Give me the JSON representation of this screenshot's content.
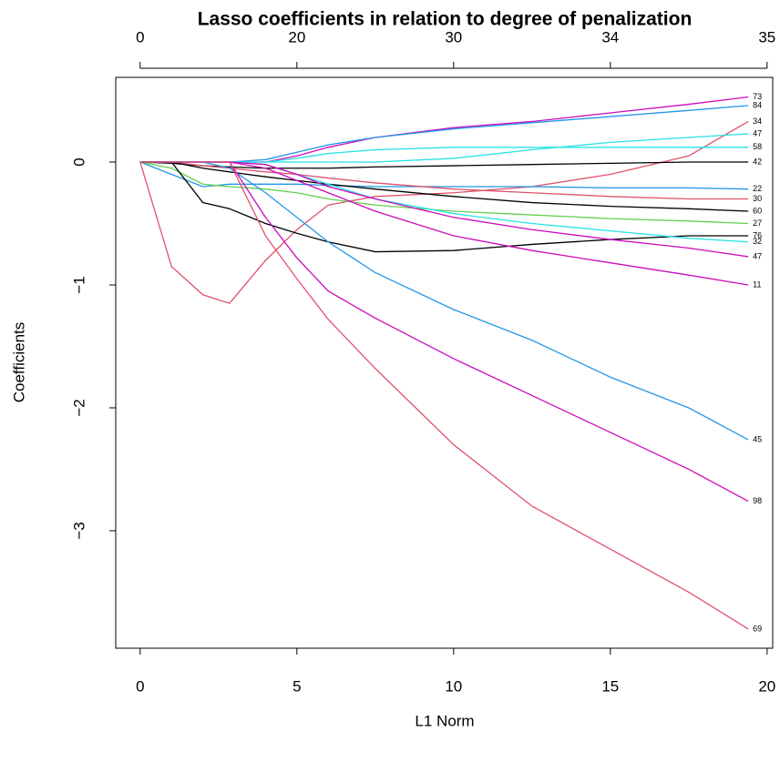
{
  "chart_data": {
    "type": "line",
    "title": "Lasso coefficients in relation to degree of penalization",
    "x_label": "L1 Norm",
    "y_label": "Coefficients",
    "x": [
      0,
      1,
      2,
      2.85,
      4,
      5,
      6,
      7.5,
      10,
      12.5,
      15,
      17.5,
      19.4
    ],
    "xlim": [
      -0.78,
      20.18
    ],
    "ylim": [
      -3.956,
      0.689
    ],
    "xticks": [
      0,
      5,
      10,
      15,
      20
    ],
    "top_ticks": [
      {
        "value": 0,
        "label": "0"
      },
      {
        "value": 5,
        "label": "20"
      },
      {
        "value": 10,
        "label": "30"
      },
      {
        "value": 15,
        "label": "34"
      },
      {
        "value": 20,
        "label": "35"
      }
    ],
    "yticks": [
      {
        "value": -3,
        "label": "−3"
      },
      {
        "value": -2,
        "label": "−2"
      },
      {
        "value": -1,
        "label": "−1"
      },
      0
    ],
    "series": [
      {
        "name": "73",
        "color": "#CD0BBC",
        "values": [
          0,
          0,
          0,
          0,
          0,
          0.05,
          0.12,
          0.2,
          0.28,
          0.33,
          0.4,
          0.47,
          0.53
        ]
      },
      {
        "name": "84",
        "color": "#2297E6",
        "values": [
          0,
          0,
          0,
          0,
          0.02,
          0.08,
          0.14,
          0.2,
          0.27,
          0.32,
          0.37,
          0.42,
          0.46
        ]
      },
      {
        "name": "34",
        "color": "#DF536B",
        "values": [
          0,
          -0.85,
          -1.08,
          -1.15,
          -0.8,
          -0.55,
          -0.35,
          -0.28,
          -0.25,
          -0.2,
          -0.1,
          0.05,
          0.33
        ]
      },
      {
        "name": "47",
        "color": "#28E2E5",
        "values": [
          0,
          0,
          0,
          0,
          0,
          0,
          0,
          0,
          0.03,
          0.1,
          0.16,
          0.2,
          0.23
        ]
      },
      {
        "name": "58",
        "color": "#28E2E5",
        "values": [
          0,
          0,
          0,
          0,
          0,
          0.03,
          0.07,
          0.1,
          0.12,
          0.12,
          0.12,
          0.12,
          0.12
        ]
      },
      {
        "name": "42",
        "color": "#000000",
        "values": [
          0,
          -0.01,
          -0.03,
          -0.04,
          -0.05,
          -0.05,
          -0.05,
          -0.04,
          -0.03,
          -0.02,
          -0.01,
          0,
          0
        ]
      },
      {
        "name": "22",
        "color": "#2297E6",
        "values": [
          0,
          -0.1,
          -0.2,
          -0.18,
          -0.18,
          -0.18,
          -0.19,
          -0.2,
          -0.2,
          -0.2,
          -0.21,
          -0.21,
          -0.22
        ]
      },
      {
        "name": "30",
        "color": "#DF536B",
        "values": [
          0,
          0,
          -0.03,
          -0.05,
          -0.08,
          -0.1,
          -0.13,
          -0.17,
          -0.22,
          -0.25,
          -0.28,
          -0.3,
          -0.3
        ]
      },
      {
        "name": "60",
        "color": "#000000",
        "values": [
          0,
          0,
          -0.05,
          -0.08,
          -0.12,
          -0.15,
          -0.18,
          -0.22,
          -0.28,
          -0.33,
          -0.36,
          -0.38,
          -0.4
        ]
      },
      {
        "name": "27",
        "color": "#61D04F",
        "values": [
          0,
          -0.05,
          -0.18,
          -0.2,
          -0.22,
          -0.25,
          -0.3,
          -0.35,
          -0.4,
          -0.43,
          -0.46,
          -0.48,
          -0.5
        ]
      },
      {
        "name": "76",
        "color": "#000000",
        "values": [
          0,
          0,
          -0.33,
          -0.38,
          -0.5,
          -0.58,
          -0.65,
          -0.73,
          -0.72,
          -0.67,
          -0.63,
          -0.6,
          -0.6
        ]
      },
      {
        "name": "32",
        "color": "#28E2E5",
        "values": [
          0,
          0,
          0,
          0,
          -0.02,
          -0.1,
          -0.18,
          -0.3,
          -0.42,
          -0.5,
          -0.56,
          -0.62,
          -0.65
        ]
      },
      {
        "name": "47",
        "color": "#CD0BBC",
        "values": [
          0,
          0,
          0,
          0,
          -0.02,
          -0.1,
          -0.2,
          -0.3,
          -0.45,
          -0.55,
          -0.63,
          -0.7,
          -0.77
        ]
      },
      {
        "name": "11",
        "color": "#CD0BBC",
        "values": [
          0,
          0,
          0,
          0,
          -0.05,
          -0.15,
          -0.25,
          -0.4,
          -0.6,
          -0.72,
          -0.82,
          -0.92,
          -1.0
        ]
      },
      {
        "name": "45",
        "color": "#2297E6",
        "values": [
          0,
          0,
          0,
          -0.05,
          -0.25,
          -0.45,
          -0.65,
          -0.9,
          -1.2,
          -1.45,
          -1.75,
          -2.0,
          -2.26
        ]
      },
      {
        "name": "98",
        "color": "#CD0BBC",
        "values": [
          0,
          0,
          0,
          0,
          -0.45,
          -0.78,
          -1.05,
          -1.27,
          -1.6,
          -1.9,
          -2.2,
          -2.5,
          -2.76
        ]
      },
      {
        "name": "69",
        "color": "#DF536B",
        "values": [
          0,
          0,
          0,
          0,
          -0.6,
          -0.95,
          -1.28,
          -1.68,
          -2.3,
          -2.8,
          -3.15,
          -3.5,
          -3.8
        ]
      }
    ]
  }
}
